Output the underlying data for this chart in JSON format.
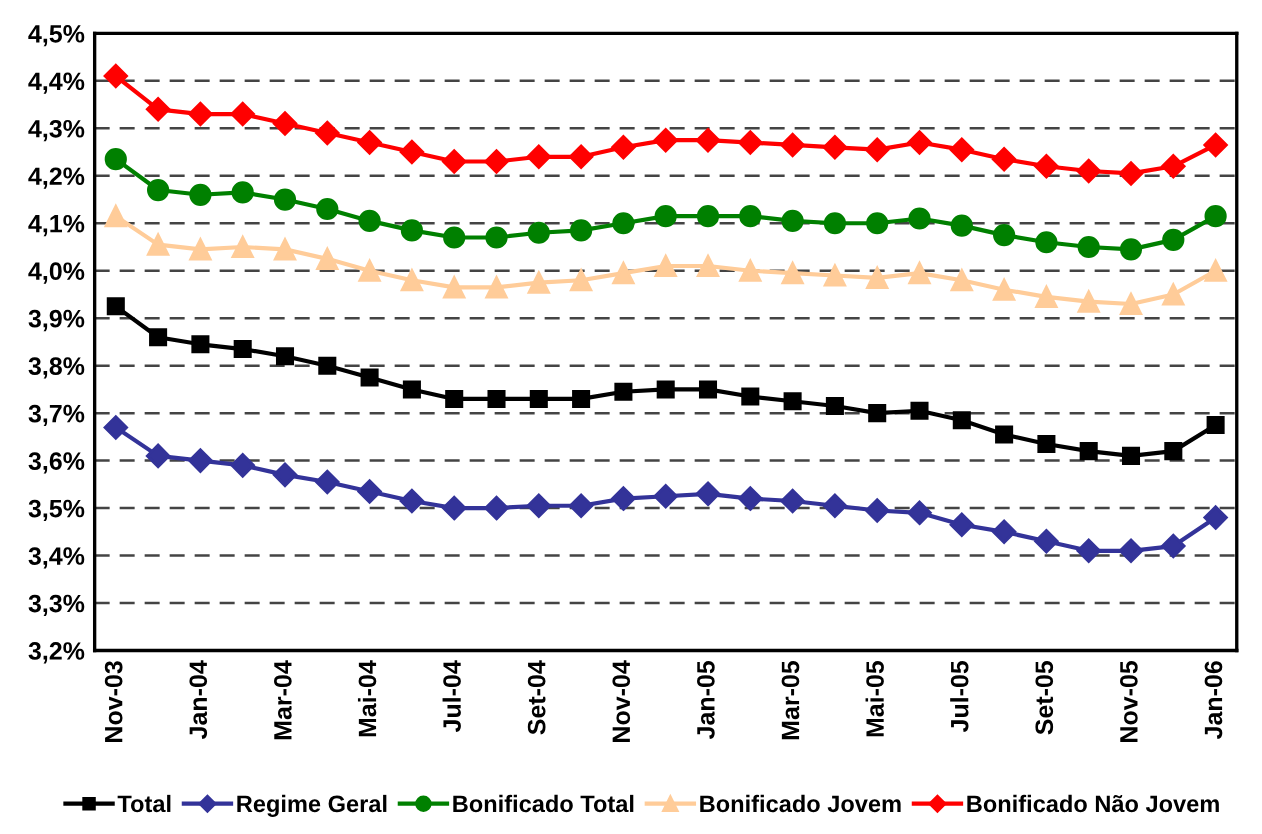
{
  "chart_data": {
    "type": "line",
    "categories": [
      "Nov-03",
      null,
      "Jan-04",
      null,
      "Mar-04",
      null,
      "Mai-04",
      null,
      "Jul-04",
      null,
      "Set-04",
      null,
      "Nov-04",
      null,
      "Jan-05",
      null,
      "Mar-05",
      null,
      "Mai-05",
      null,
      "Jul-05",
      null,
      "Set-05",
      null,
      "Nov-05",
      null,
      "Jan-06"
    ],
    "ylim": [
      3.2,
      4.5
    ],
    "yticks": [
      {
        "value": 3.2,
        "label": "3,2%"
      },
      {
        "value": 3.3,
        "label": "3,3%"
      },
      {
        "value": 3.4,
        "label": "3,4%"
      },
      {
        "value": 3.5,
        "label": "3,5%"
      },
      {
        "value": 3.6,
        "label": "3,6%"
      },
      {
        "value": 3.7,
        "label": "3,7%"
      },
      {
        "value": 3.8,
        "label": "3,8%"
      },
      {
        "value": 3.9,
        "label": "3,9%"
      },
      {
        "value": 4.0,
        "label": "4,0%"
      },
      {
        "value": 4.1,
        "label": "4,1%"
      },
      {
        "value": 4.2,
        "label": "4,2%"
      },
      {
        "value": 4.3,
        "label": "4,3%"
      },
      {
        "value": 4.4,
        "label": "4,4%"
      },
      {
        "value": 4.5,
        "label": "4,5%"
      }
    ],
    "grid": "y",
    "legend": "bottom",
    "line_style": "solid",
    "series": [
      {
        "name": "Total",
        "color": "#000000",
        "marker": "square",
        "values": [
          3.925,
          3.86,
          3.845,
          3.835,
          3.82,
          3.8,
          3.775,
          3.75,
          3.73,
          3.73,
          3.73,
          3.73,
          3.745,
          3.75,
          3.75,
          3.735,
          3.725,
          3.715,
          3.7,
          3.705,
          3.685,
          3.655,
          3.635,
          3.62,
          3.61,
          3.62,
          3.675
        ]
      },
      {
        "name": "Regime Geral",
        "color": "#333399",
        "marker": "diamond",
        "values": [
          3.67,
          3.61,
          3.6,
          3.59,
          3.57,
          3.555,
          3.535,
          3.515,
          3.5,
          3.5,
          3.505,
          3.505,
          3.52,
          3.525,
          3.53,
          3.52,
          3.515,
          3.505,
          3.495,
          3.49,
          3.465,
          3.45,
          3.43,
          3.41,
          3.41,
          3.42,
          3.48
        ]
      },
      {
        "name": "Bonificado Total",
        "color": "#008000",
        "marker": "circle",
        "values": [
          4.235,
          4.17,
          4.16,
          4.165,
          4.15,
          4.13,
          4.105,
          4.085,
          4.07,
          4.07,
          4.08,
          4.085,
          4.1,
          4.115,
          4.115,
          4.115,
          4.105,
          4.1,
          4.1,
          4.11,
          4.095,
          4.075,
          4.06,
          4.05,
          4.045,
          4.065,
          4.115
        ]
      },
      {
        "name": "Bonificado Jovem",
        "color": "#ffcc99",
        "marker": "triangle",
        "values": [
          4.115,
          4.055,
          4.045,
          4.05,
          4.045,
          4.025,
          4.0,
          3.98,
          3.965,
          3.965,
          3.975,
          3.98,
          3.995,
          4.01,
          4.01,
          4.0,
          3.995,
          3.99,
          3.985,
          3.995,
          3.98,
          3.96,
          3.945,
          3.935,
          3.93,
          3.95,
          4.0
        ]
      },
      {
        "name": "Bonificado Não Jovem",
        "color": "#ff0000",
        "marker": "diamond",
        "values": [
          4.41,
          4.34,
          4.33,
          4.33,
          4.31,
          4.29,
          4.27,
          4.25,
          4.23,
          4.23,
          4.24,
          4.24,
          4.26,
          4.275,
          4.275,
          4.27,
          4.265,
          4.26,
          4.255,
          4.27,
          4.255,
          4.235,
          4.22,
          4.21,
          4.205,
          4.22,
          4.265
        ]
      }
    ]
  }
}
